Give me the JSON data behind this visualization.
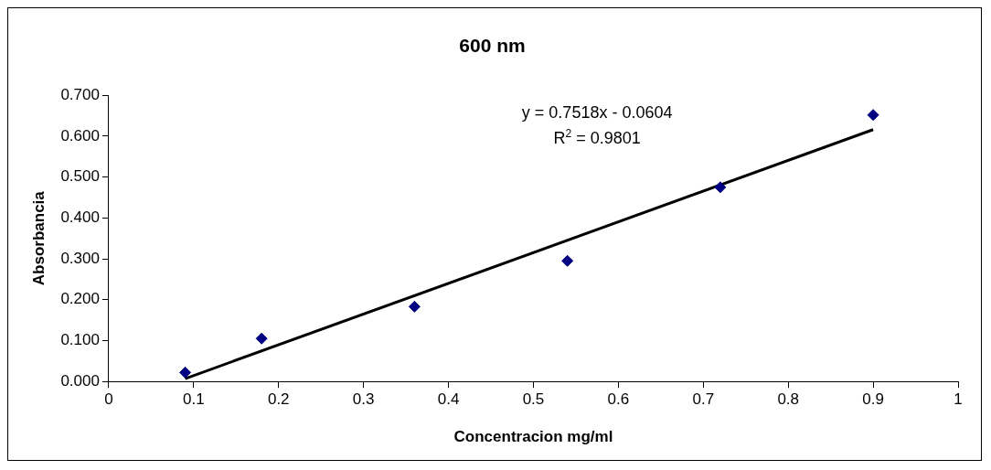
{
  "chart_data": {
    "type": "scatter",
    "title": "600 nm",
    "xlabel": "Concentracion mg/ml",
    "ylabel": "Absorbancia",
    "annotations": [
      "y = 0.7518x - 0.0604",
      "R$^{2}$ = 0.9801"
    ],
    "series": [
      {
        "type": "scatter",
        "color": "#000080",
        "marker": "diamond",
        "x": [
          0.09,
          0.18,
          0.36,
          0.54,
          0.72,
          0.9
        ],
        "values": [
          0.022,
          0.105,
          0.183,
          0.295,
          0.475,
          0.652
        ]
      },
      {
        "type": "line",
        "color": "#000000",
        "marker": "none",
        "line_style": "solid",
        "x": [
          0.09,
          0.9
        ],
        "values": [
          0.007,
          0.616
        ]
      }
    ],
    "xlim": [
      0,
      1
    ],
    "xticks": [
      0,
      0.1,
      0.2,
      0.3,
      0.4,
      0.5,
      0.6,
      0.7,
      0.8,
      0.9,
      1
    ],
    "ylim": [
      0,
      0.7
    ],
    "yticks": [
      {
        "value": 0,
        "label": "0.000"
      },
      {
        "value": 0.1,
        "label": "0.100"
      },
      {
        "value": 0.2,
        "label": "0.200"
      },
      {
        "value": 0.3,
        "label": "0.300"
      },
      {
        "value": 0.4,
        "label": "0.400"
      },
      {
        "value": 0.5,
        "label": "0.500"
      },
      {
        "value": 0.6,
        "label": "0.600"
      },
      {
        "value": 0.7,
        "label": "0.700"
      }
    ],
    "grid": false
  }
}
